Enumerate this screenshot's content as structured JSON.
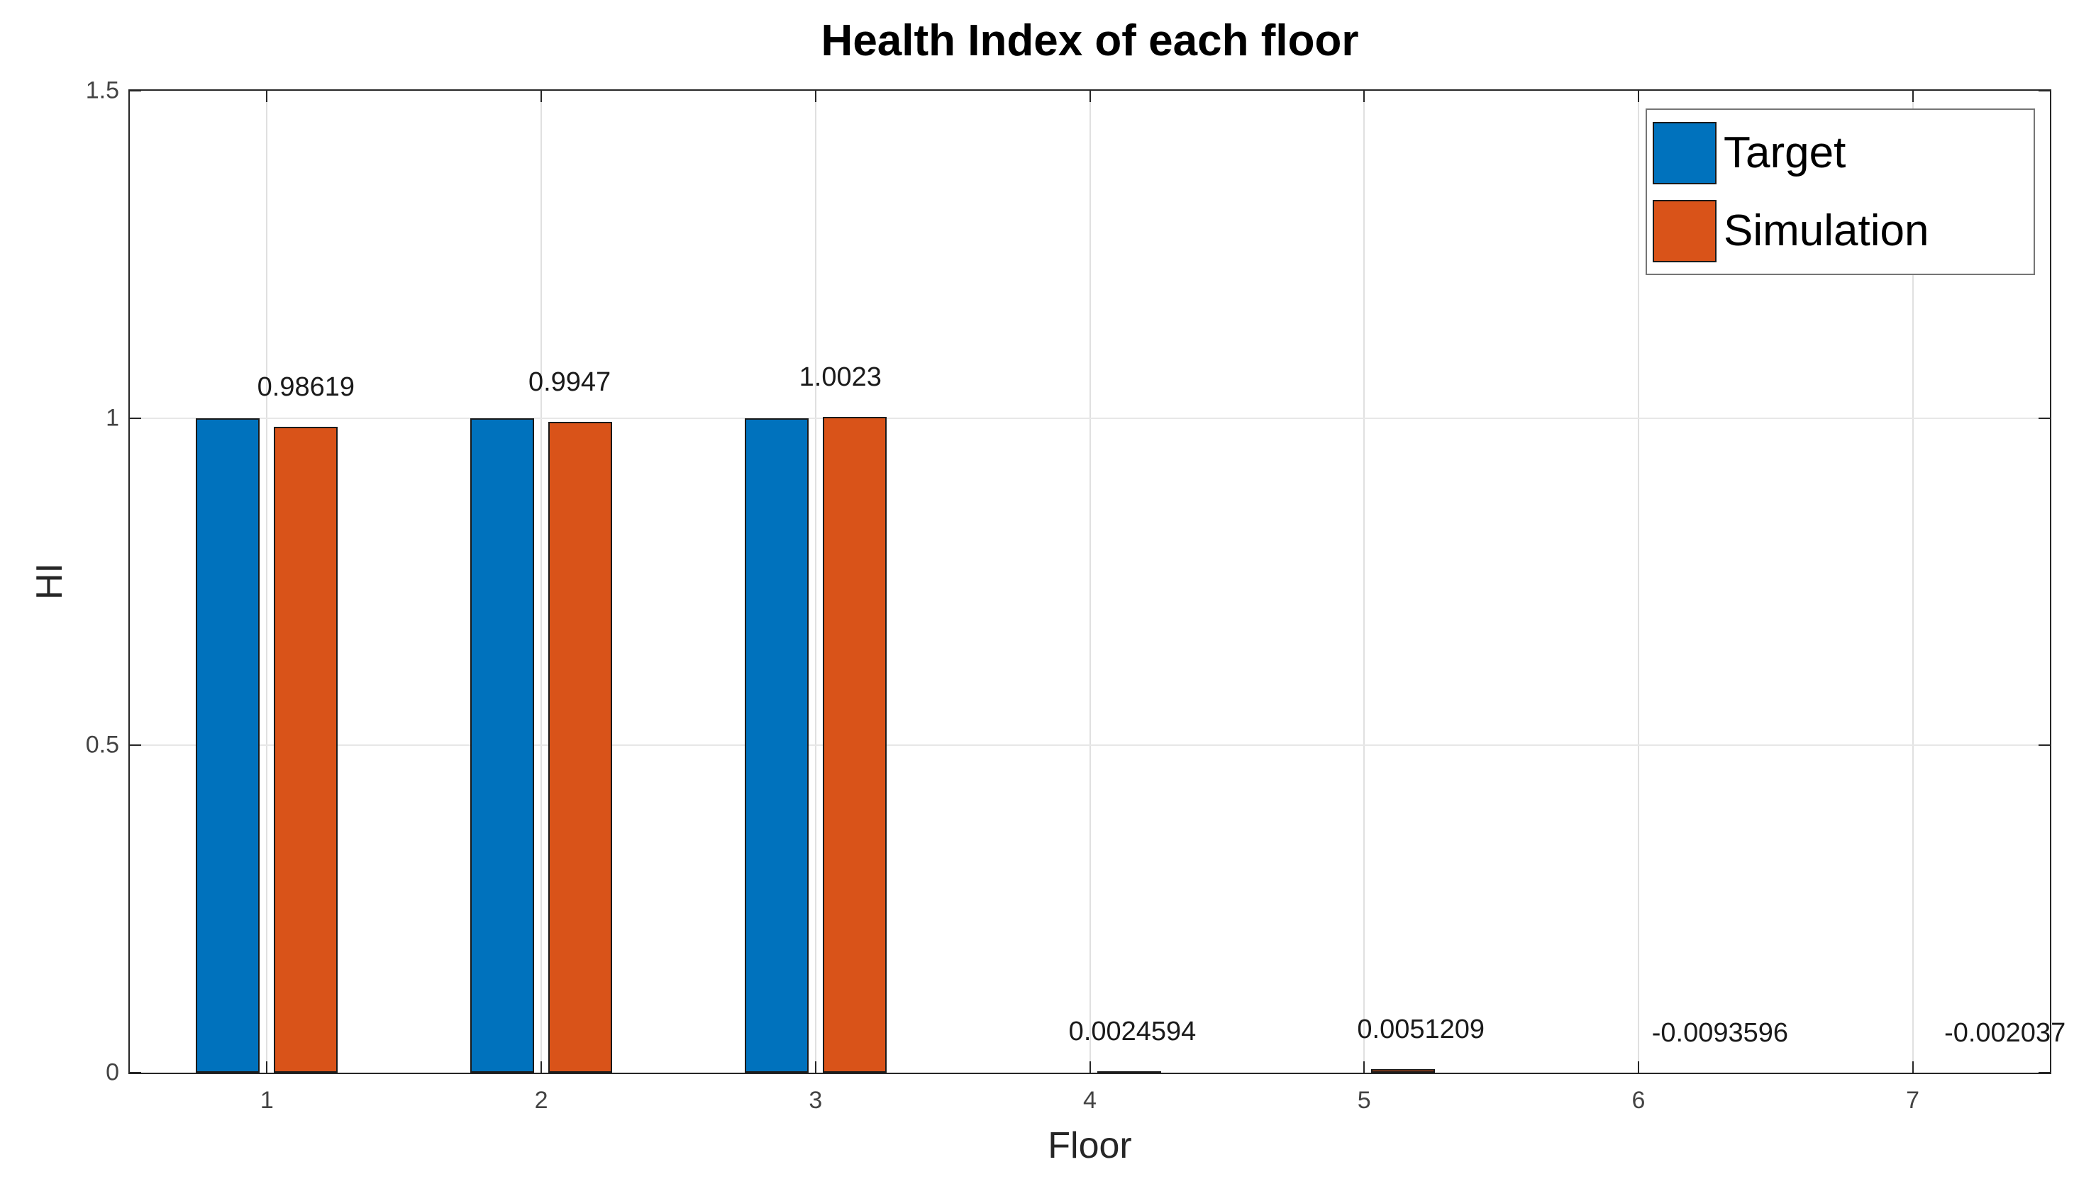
{
  "title": "Health Index of each floor",
  "chart_data": {
    "type": "bar",
    "title": "Health Index of each floor",
    "xlabel": "Floor",
    "ylabel": "HI",
    "categories": [
      1,
      2,
      3,
      4,
      5,
      6,
      7
    ],
    "series": [
      {
        "name": "Target",
        "color": "#0072BD",
        "values": [
          1,
          1,
          1,
          0,
          0,
          0,
          0
        ]
      },
      {
        "name": "Simulation",
        "color": "#D95319",
        "values": [
          0.98619,
          0.9947,
          1.0023,
          0.0024594,
          0.0051209,
          -0.0093596,
          -0.002037
        ]
      }
    ],
    "bar_labels": [
      "0.98619",
      "0.9947",
      "1.0023",
      "0.0024594",
      "0.0051209",
      "-0.0093596",
      "-0.002037"
    ],
    "label_dx": [
      0,
      -15,
      -20,
      5,
      25,
      60,
      75
    ],
    "xlim": [
      0.5,
      7.5
    ],
    "ylim": [
      0,
      1.5
    ],
    "xticks": [
      1,
      2,
      3,
      4,
      5,
      6,
      7
    ],
    "xtick_labels": [
      "1",
      "2",
      "3",
      "4",
      "5",
      "6",
      "7"
    ],
    "yticks": [
      0,
      0.5,
      1,
      1.5
    ],
    "ytick_labels": [
      "0",
      "0.5",
      "1",
      "1.5"
    ],
    "grid": true,
    "legend_position": "northeast",
    "axis_color": "#262626",
    "grid_color": "#e0e0e0"
  }
}
